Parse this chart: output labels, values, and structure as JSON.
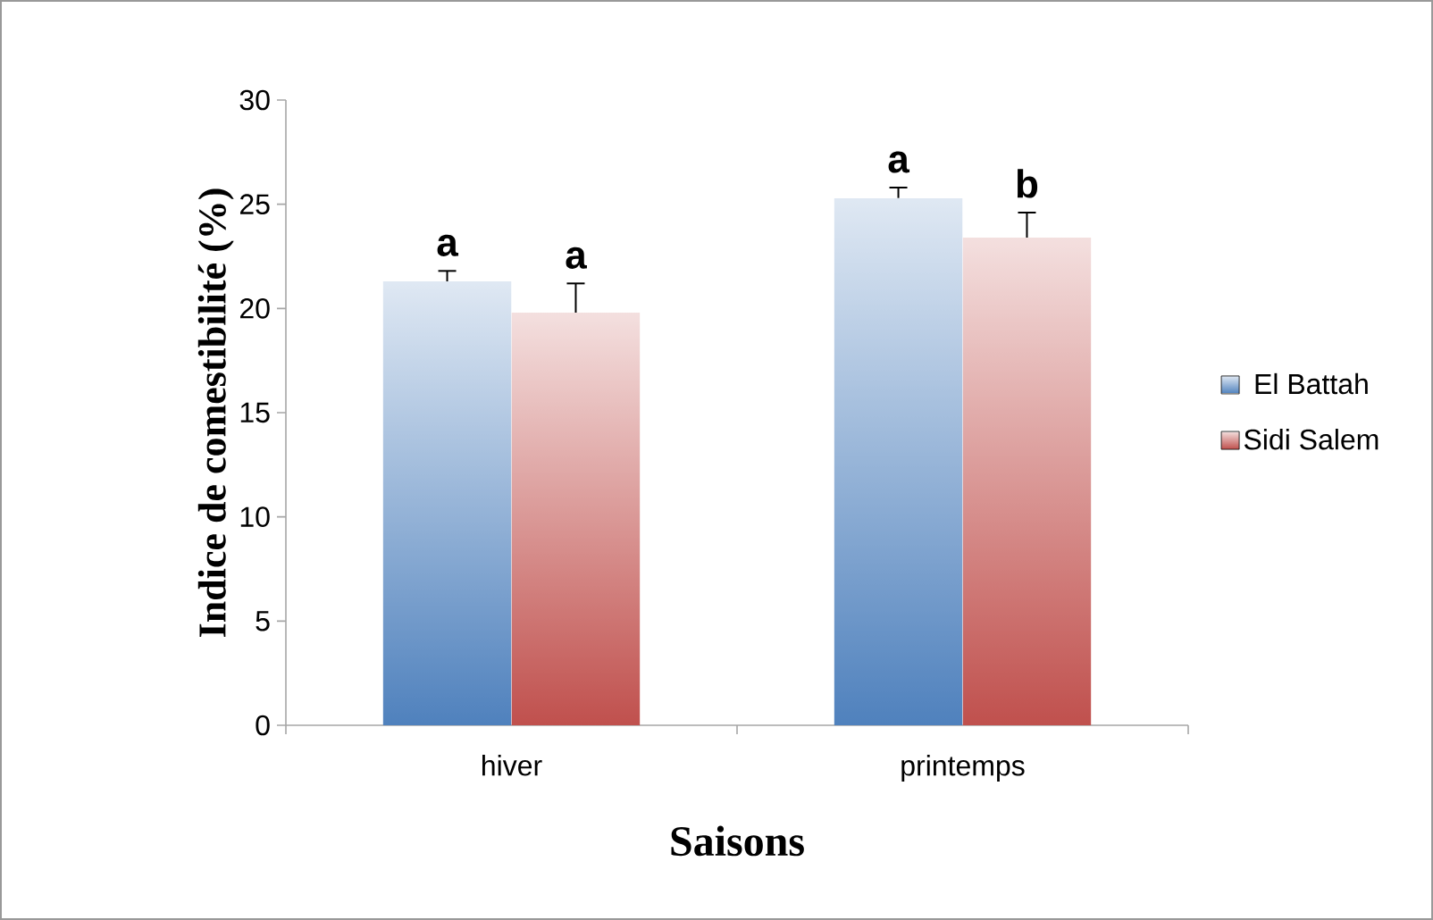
{
  "chart_data": {
    "type": "bar",
    "xlabel": "Saisons",
    "ylabel": "Indice de comestibilité (%)",
    "categories": [
      "hiver",
      "printemps"
    ],
    "series": [
      {
        "name": "El Battah",
        "color": "#4f81bd",
        "values": [
          21.3,
          25.3
        ],
        "errors": [
          0.5,
          0.5
        ]
      },
      {
        "name": "Sidi Salem",
        "color": "#c0504d",
        "values": [
          19.8,
          23.4
        ],
        "errors": [
          1.4,
          1.2
        ]
      }
    ],
    "ylim": [
      0,
      30
    ],
    "yticks": [
      0,
      5,
      10,
      15,
      20,
      25,
      30
    ],
    "grid": false,
    "legend": "right",
    "annotations": [
      "a",
      "a",
      "a",
      "b"
    ]
  }
}
